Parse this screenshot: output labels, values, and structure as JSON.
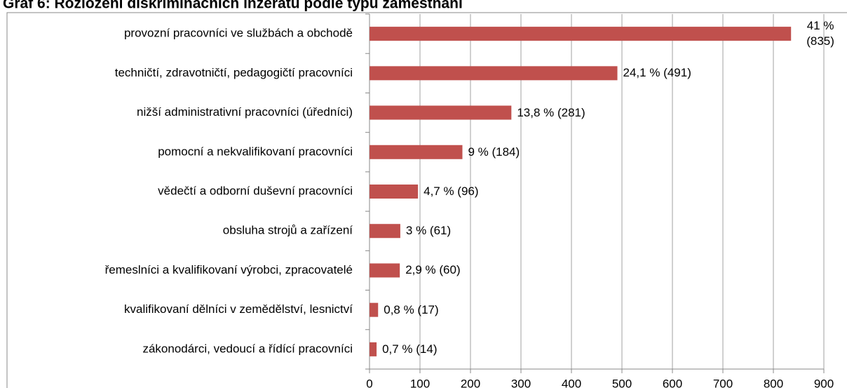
{
  "chart_data": {
    "type": "bar",
    "orientation": "horizontal",
    "title": "Graf 6: Rozložení diskriminačních inzerátů podle typu zaměstnání",
    "categories": [
      "provozní pracovníci ve službách a obchodě",
      "techničtí, zdravotničtí, pedagogičtí pracovníci",
      "nižší administrativní pracovníci (úředníci)",
      "pomocní a nekvalifikovaní pracovníci",
      "vědečtí a odborní duševní pracovníci",
      "obsluha strojů a zařízení",
      "řemeslníci a kvalifikovaní výrobci, zpracovatelé",
      "kvalifikovaní dělníci v zemědělství, lesnictví",
      "zákonodárci, vedoucí a řídící pracovníci"
    ],
    "values": [
      835,
      491,
      281,
      184,
      96,
      61,
      60,
      17,
      14
    ],
    "value_labels": [
      "41 % (835)",
      "24,1 % (491)",
      "13,8 % (281)",
      "9 % (184)",
      "4,7 % (96)",
      "3 % (61)",
      "2,9 % (60)",
      "0,8 % (17)",
      "0,7 % (14)"
    ],
    "color": "#c0504d",
    "xlim": [
      0,
      900
    ],
    "xticks": [
      0,
      100,
      200,
      300,
      400,
      500,
      600,
      700,
      800,
      900
    ],
    "grid": true
  }
}
